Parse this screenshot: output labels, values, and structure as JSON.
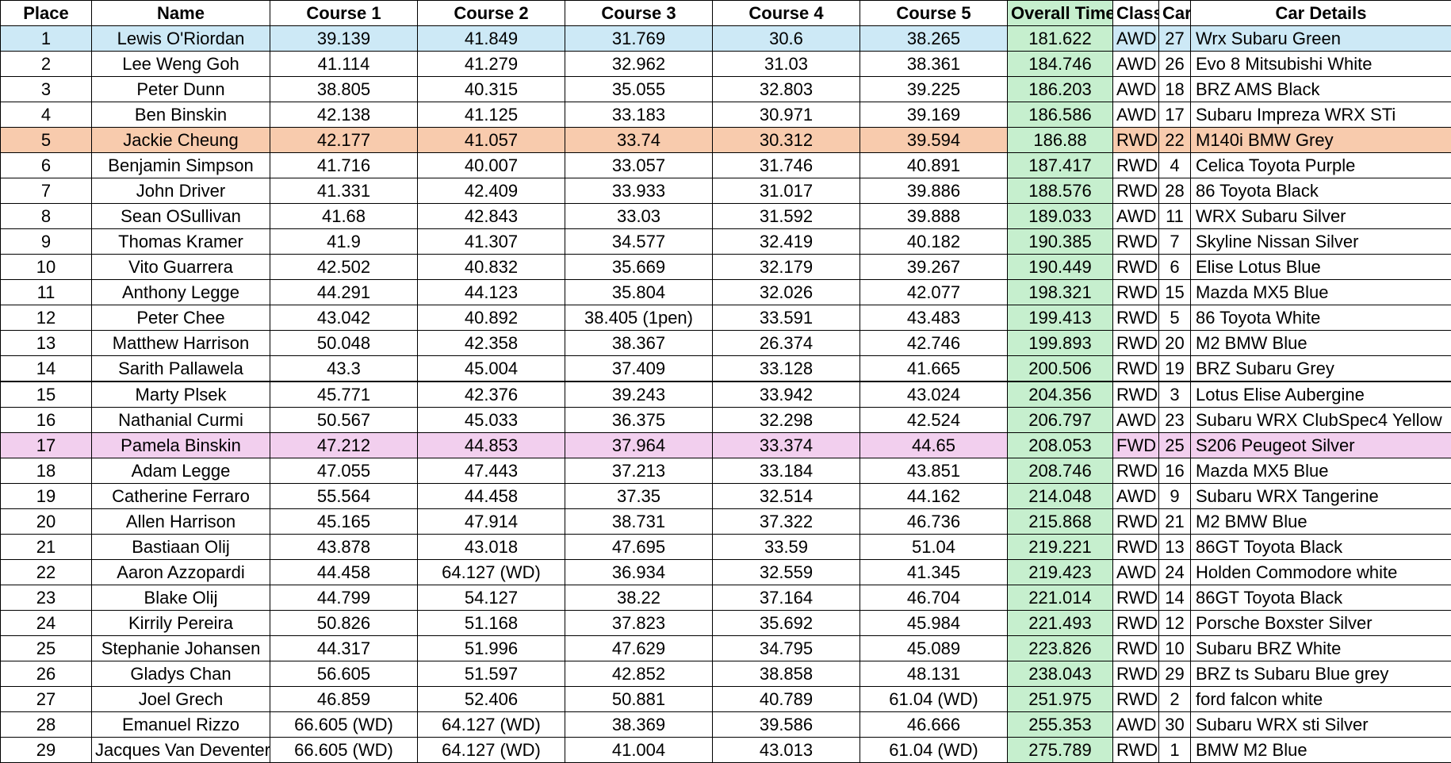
{
  "headers": {
    "place": "Place",
    "name": "Name",
    "c1": "Course 1",
    "c2": "Course 2",
    "c3": "Course 3",
    "c4": "Course 4",
    "c5": "Course 5",
    "overall": "Overall Time",
    "class": "Class",
    "car": "Car",
    "details": "Car Details"
  },
  "rows": [
    {
      "place": "1",
      "name": "Lewis O'Riordan",
      "c1": "39.139",
      "c2": "41.849",
      "c3": "31.769",
      "c4": "30.6",
      "c5": "38.265",
      "overall": "181.622",
      "class": "AWD",
      "car": "27",
      "details": "Wrx Subaru Green",
      "highlight": "blue"
    },
    {
      "place": "2",
      "name": "Lee Weng Goh",
      "c1": "41.114",
      "c2": "41.279",
      "c3": "32.962",
      "c4": "31.03",
      "c5": "38.361",
      "overall": "184.746",
      "class": "AWD",
      "car": "26",
      "details": "Evo 8 Mitsubishi White"
    },
    {
      "place": "3",
      "name": "Peter Dunn",
      "c1": "38.805",
      "c2": "40.315",
      "c3": "35.055",
      "c4": "32.803",
      "c5": "39.225",
      "overall": "186.203",
      "class": "AWD",
      "car": "18",
      "details": "BRZ AMS Black"
    },
    {
      "place": "4",
      "name": "Ben Binskin",
      "c1": "42.138",
      "c2": "41.125",
      "c3": "33.183",
      "c4": "30.971",
      "c5": "39.169",
      "overall": "186.586",
      "class": "AWD",
      "car": "17",
      "details": "Subaru Impreza WRX STi"
    },
    {
      "place": "5",
      "name": "Jackie Cheung",
      "c1": "42.177",
      "c2": "41.057",
      "c3": "33.74",
      "c4": "30.312",
      "c5": "39.594",
      "overall": "186.88",
      "class": "RWD",
      "car": "22",
      "details": "M140i BMW Grey",
      "highlight": "orange"
    },
    {
      "place": "6",
      "name": "Benjamin Simpson",
      "c1": "41.716",
      "c2": "40.007",
      "c3": "33.057",
      "c4": "31.746",
      "c5": "40.891",
      "overall": "187.417",
      "class": "RWD",
      "car": "4",
      "details": "Celica Toyota Purple"
    },
    {
      "place": "7",
      "name": "John Driver",
      "c1": "41.331",
      "c2": "42.409",
      "c3": "33.933",
      "c4": "31.017",
      "c5": "39.886",
      "overall": "188.576",
      "class": "RWD",
      "car": "28",
      "details": "86 Toyota Black"
    },
    {
      "place": "8",
      "name": "Sean OSullivan",
      "c1": "41.68",
      "c2": "42.843",
      "c3": "33.03",
      "c4": "31.592",
      "c5": "39.888",
      "overall": "189.033",
      "class": "AWD",
      "car": "11",
      "details": "WRX Subaru Silver"
    },
    {
      "place": "9",
      "name": "Thomas Kramer",
      "c1": "41.9",
      "c2": "41.307",
      "c3": "34.577",
      "c4": "32.419",
      "c5": "40.182",
      "overall": "190.385",
      "class": "RWD",
      "car": "7",
      "details": "Skyline Nissan Silver"
    },
    {
      "place": "10",
      "name": "Vito Guarrera",
      "c1": "42.502",
      "c2": "40.832",
      "c3": "35.669",
      "c4": "32.179",
      "c5": "39.267",
      "overall": "190.449",
      "class": "RWD",
      "car": "6",
      "details": "Elise Lotus Blue"
    },
    {
      "place": "11",
      "name": "Anthony Legge",
      "c1": "44.291",
      "c2": "44.123",
      "c3": "35.804",
      "c4": "32.026",
      "c5": "42.077",
      "overall": "198.321",
      "class": "RWD",
      "car": "15",
      "details": "Mazda MX5 Blue"
    },
    {
      "place": "12",
      "name": "Peter Chee",
      "c1": "43.042",
      "c2": "40.892",
      "c3": "38.405 (1pen)",
      "c4": "33.591",
      "c5": "43.483",
      "overall": "199.413",
      "class": "RWD",
      "car": "5",
      "details": "86 Toyota White"
    },
    {
      "place": "13",
      "name": "Matthew Harrison",
      "c1": "50.048",
      "c2": "42.358",
      "c3": "38.367",
      "c4": "26.374",
      "c5": "42.746",
      "overall": "199.893",
      "class": "RWD",
      "car": "20",
      "details": "M2 BMW Blue"
    },
    {
      "place": "14",
      "name": "Sarith Pallawela",
      "c1": "43.3",
      "c2": "45.004",
      "c3": "37.409",
      "c4": "33.128",
      "c5": "41.665",
      "overall": "200.506",
      "class": "RWD",
      "car": "19",
      "details": "BRZ Subaru Grey"
    },
    {
      "place": "15",
      "name": "Marty Plsek",
      "c1": "45.771",
      "c2": "42.376",
      "c3": "39.243",
      "c4": "33.942",
      "c5": "43.024",
      "overall": "204.356",
      "class": "RWD",
      "car": "3",
      "details": "Lotus Elise Aubergine"
    },
    {
      "place": "16",
      "name": "Nathanial Curmi",
      "c1": "50.567",
      "c2": "45.033",
      "c3": "36.375",
      "c4": "32.298",
      "c5": "42.524",
      "overall": "206.797",
      "class": "AWD",
      "car": "23",
      "details": "Subaru WRX ClubSpec4 Yellow"
    },
    {
      "place": "17",
      "name": "Pamela Binskin",
      "c1": "47.212",
      "c2": "44.853",
      "c3": "37.964",
      "c4": "33.374",
      "c5": "44.65",
      "overall": "208.053",
      "class": "FWD",
      "car": "25",
      "details": "S206 Peugeot Silver",
      "highlight": "pink"
    },
    {
      "place": "18",
      "name": "Adam Legge",
      "c1": "47.055",
      "c2": "47.443",
      "c3": "37.213",
      "c4": "33.184",
      "c5": "43.851",
      "overall": "208.746",
      "class": "RWD",
      "car": "16",
      "details": "Mazda MX5 Blue"
    },
    {
      "place": "19",
      "name": "Catherine Ferraro",
      "c1": "55.564",
      "c2": "44.458",
      "c3": "37.35",
      "c4": "32.514",
      "c5": "44.162",
      "overall": "214.048",
      "class": "AWD",
      "car": "9",
      "details": "Subaru WRX Tangerine"
    },
    {
      "place": "20",
      "name": "Allen Harrison",
      "c1": "45.165",
      "c2": "47.914",
      "c3": "38.731",
      "c4": "37.322",
      "c5": "46.736",
      "overall": "215.868",
      "class": "RWD",
      "car": "21",
      "details": "M2 BMW Blue"
    },
    {
      "place": "21",
      "name": "Bastiaan Olij",
      "c1": "43.878",
      "c2": "43.018",
      "c3": "47.695",
      "c4": "33.59",
      "c5": "51.04",
      "overall": "219.221",
      "class": "RWD",
      "car": "13",
      "details": "86GT Toyota Black"
    },
    {
      "place": "22",
      "name": "Aaron Azzopardi",
      "c1": "44.458",
      "c2": "64.127 (WD)",
      "c3": "36.934",
      "c4": "32.559",
      "c5": "41.345",
      "overall": "219.423",
      "class": "AWD",
      "car": "24",
      "details": "Holden Commodore white"
    },
    {
      "place": "23",
      "name": "Blake Olij",
      "c1": "44.799",
      "c2": "54.127",
      "c3": "38.22",
      "c4": "37.164",
      "c5": "46.704",
      "overall": "221.014",
      "class": "RWD",
      "car": "14",
      "details": "86GT Toyota Black"
    },
    {
      "place": "24",
      "name": "Kirrily Pereira",
      "c1": "50.826",
      "c2": "51.168",
      "c3": "37.823",
      "c4": "35.692",
      "c5": "45.984",
      "overall": "221.493",
      "class": "RWD",
      "car": "12",
      "details": "Porsche Boxster Silver"
    },
    {
      "place": "25",
      "name": "Stephanie Johansen",
      "c1": "44.317",
      "c2": "51.996",
      "c3": "47.629",
      "c4": "34.795",
      "c5": "45.089",
      "overall": "223.826",
      "class": "RWD",
      "car": "10",
      "details": "Subaru BRZ White"
    },
    {
      "place": "26",
      "name": "Gladys Chan",
      "c1": "56.605",
      "c2": "51.597",
      "c3": "42.852",
      "c4": "38.858",
      "c5": "48.131",
      "overall": "238.043",
      "class": "RWD",
      "car": "29",
      "details": "BRZ ts Subaru Blue grey"
    },
    {
      "place": "27",
      "name": "Joel Grech",
      "c1": "46.859",
      "c2": "52.406",
      "c3": "50.881",
      "c4": "40.789",
      "c5": "61.04 (WD)",
      "overall": "251.975",
      "class": "RWD",
      "car": "2",
      "details": "ford falcon white"
    },
    {
      "place": "28",
      "name": "Emanuel Rizzo",
      "c1": "66.605 (WD)",
      "c2": "64.127 (WD)",
      "c3": "38.369",
      "c4": "39.586",
      "c5": "46.666",
      "overall": "255.353",
      "class": "AWD",
      "car": "30",
      "details": "Subaru WRX sti Silver"
    },
    {
      "place": "29",
      "name": "Jacques Van Deventer",
      "c1": "66.605 (WD)",
      "c2": "64.127 (WD)",
      "c3": "41.004",
      "c4": "43.013",
      "c5": "61.04 (WD)",
      "overall": "275.789",
      "class": "RWD",
      "car": "1",
      "details": "BMW M2 Blue"
    }
  ]
}
